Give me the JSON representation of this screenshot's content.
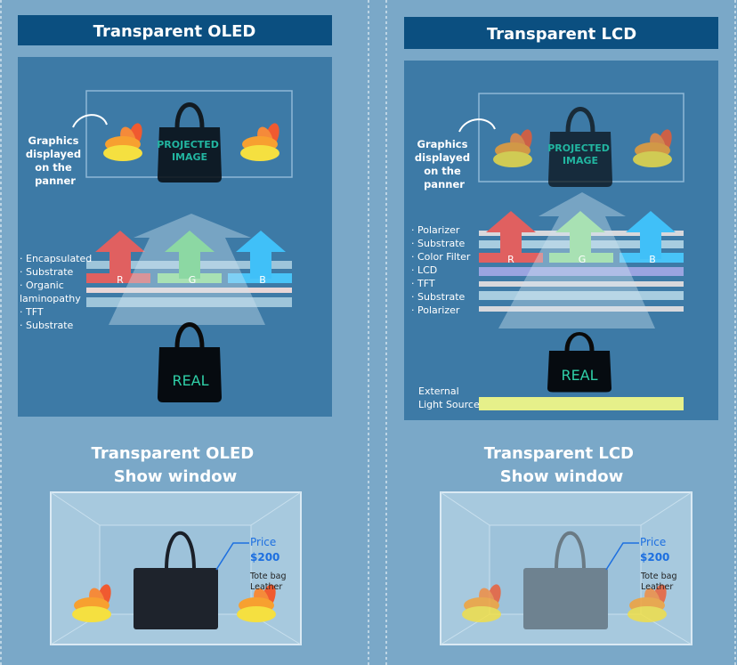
{
  "colors": {
    "background": "#7aa8c8",
    "title_bar": "#0b4f80",
    "panel": "#3d7aa6",
    "red": "#e06060",
    "green": "#60d070",
    "blue": "#40c0f8",
    "light_source": "#e6f08a",
    "label_text": "#22b5a0"
  },
  "oled": {
    "title": "Transparent OLED",
    "graphics_label": [
      "Graphics",
      "displayed",
      "on the",
      "panner"
    ],
    "projected_label": [
      "PROJECTED",
      "IMAGE"
    ],
    "real_label": "REAL",
    "rgb": [
      "R",
      "G",
      "B"
    ],
    "layers": [
      "· Encapsulated",
      "· Substrate",
      "· Organic",
      "  laminopathy",
      "· TFT",
      "· Substrate"
    ],
    "show_window_title": [
      "Transparent OLED",
      "Show window"
    ],
    "price_label": "Price",
    "price_value": "$200",
    "product": [
      "Tote bag",
      "Leather"
    ]
  },
  "lcd": {
    "title": "Transparent LCD",
    "graphics_label": [
      "Graphics",
      "displayed",
      "on the",
      "panner"
    ],
    "projected_label": [
      "PROJECTED",
      "IMAGE"
    ],
    "real_label": "REAL",
    "rgb": [
      "R",
      "G",
      "B"
    ],
    "layers": [
      "· Polarizer",
      "· Substrate",
      "· Color Filter",
      "· LCD",
      "· TFT",
      "· Substrate",
      "· Polarizer"
    ],
    "light_source_label": [
      "External",
      "Light Source"
    ],
    "show_window_title": [
      "Transparent LCD",
      "Show window"
    ],
    "price_label": "Price",
    "price_value": "$200",
    "product": [
      "Tote bag",
      "Leather"
    ]
  }
}
